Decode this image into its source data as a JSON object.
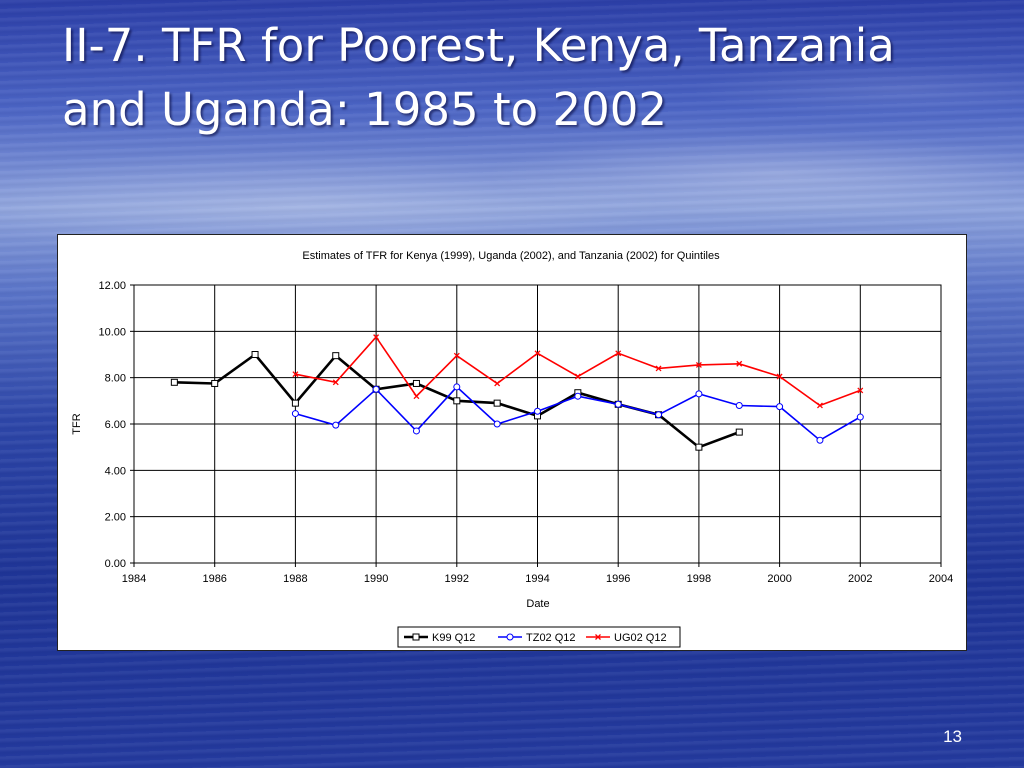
{
  "slide": {
    "title": "II-7. TFR for Poorest, Kenya, Tanzania and Uganda: 1985 to 2002",
    "page_number": "13"
  },
  "chart_data": {
    "type": "line",
    "title": "Estimates of TFR for Kenya (1999), Uganda (2002), and Tanzania (2002) for Quintiles",
    "xlabel": "Date",
    "ylabel": "TFR",
    "xlim": [
      1984,
      2004
    ],
    "ylim": [
      0,
      12
    ],
    "x_ticks": [
      "1984",
      "1986",
      "1988",
      "1990",
      "1992",
      "1994",
      "1996",
      "1998",
      "2000",
      "2002",
      "2004"
    ],
    "y_ticks": [
      "0.00",
      "2.00",
      "4.00",
      "6.00",
      "8.00",
      "10.00",
      "12.00"
    ],
    "grid": "horizontal",
    "legend_position": "bottom",
    "series": [
      {
        "name": "K99 Q12",
        "color": "#000000",
        "marker": "square",
        "x": [
          1985,
          1986,
          1987,
          1988,
          1989,
          1990,
          1991,
          1992,
          1993,
          1994,
          1995,
          1996,
          1997,
          1998,
          1999
        ],
        "values": [
          7.8,
          7.75,
          9.0,
          6.9,
          8.95,
          7.5,
          7.75,
          7.0,
          6.9,
          6.35,
          7.35,
          6.85,
          6.4,
          5.0,
          5.65
        ]
      },
      {
        "name": "TZ02 Q12",
        "color": "#0000ff",
        "marker": "circle",
        "x": [
          1988,
          1989,
          1990,
          1991,
          1992,
          1993,
          1994,
          1995,
          1996,
          1997,
          1998,
          1999,
          2000,
          2001,
          2002
        ],
        "values": [
          6.45,
          5.95,
          7.5,
          5.7,
          7.6,
          6.0,
          6.55,
          7.2,
          6.85,
          6.4,
          7.3,
          6.8,
          6.75,
          5.3,
          6.3
        ]
      },
      {
        "name": "UG02 Q12",
        "color": "#ff0000",
        "marker": "x",
        "x": [
          1988,
          1989,
          1990,
          1991,
          1992,
          1993,
          1994,
          1995,
          1996,
          1997,
          1998,
          1999,
          2000,
          2001,
          2002
        ],
        "values": [
          8.15,
          7.8,
          9.75,
          7.2,
          8.95,
          7.75,
          9.05,
          8.05,
          9.05,
          8.4,
          8.55,
          8.6,
          8.05,
          6.8,
          7.45
        ]
      }
    ]
  }
}
